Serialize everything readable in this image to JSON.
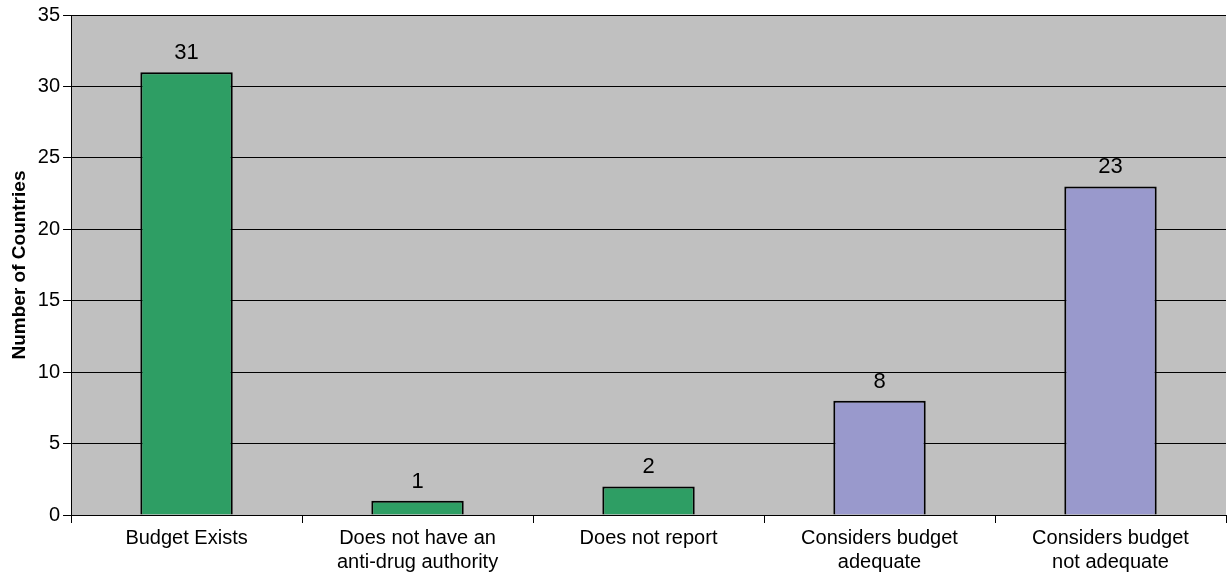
{
  "chart_data": {
    "type": "bar",
    "ylabel": "Number of Countries",
    "categories": [
      "Budget Exists",
      "Does not have an anti-drug authority",
      "Does not report",
      "Considers budget adequate",
      "Considers budget not adequate"
    ],
    "values": [
      31,
      1,
      2,
      8,
      23
    ],
    "colors": [
      "#2e9e64",
      "#2e9e64",
      "#2e9e64",
      "#9999cc",
      "#9999cc"
    ],
    "ylim": [
      0,
      35
    ],
    "yticks": [
      0,
      5,
      10,
      15,
      20,
      25,
      30,
      35
    ],
    "grid": "y",
    "data_labels": true,
    "legend": false
  }
}
